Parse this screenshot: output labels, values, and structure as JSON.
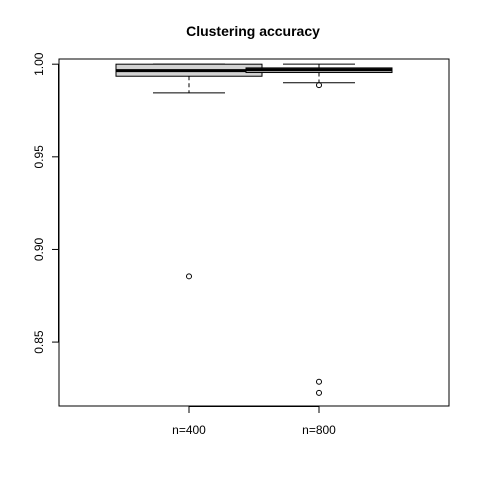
{
  "chart_data": {
    "type": "boxplot",
    "title": "Clustering accuracy",
    "xlabel": "",
    "ylabel": "",
    "ylim": [
      0.8155,
      1.0028
    ],
    "yticks": [
      0.85,
      0.9,
      0.95,
      1.0
    ],
    "ytick_labels": [
      "0.85",
      "0.90",
      "0.95",
      "1.00"
    ],
    "grid": false,
    "box_fill": "#d3d3d3",
    "series": [
      {
        "label": "n=400",
        "whisker_low": 0.9845,
        "q1": 0.9935,
        "median": 0.9965,
        "q3": 1.0,
        "whisker_high": 1.0,
        "outliers": [
          0.8855
        ]
      },
      {
        "label": "n=800",
        "whisker_low": 0.99,
        "q1": 0.9955,
        "median": 0.997,
        "q3": 0.998,
        "whisker_high": 1.0,
        "outliers": [
          0.9887,
          0.8286,
          0.8226
        ]
      }
    ]
  }
}
